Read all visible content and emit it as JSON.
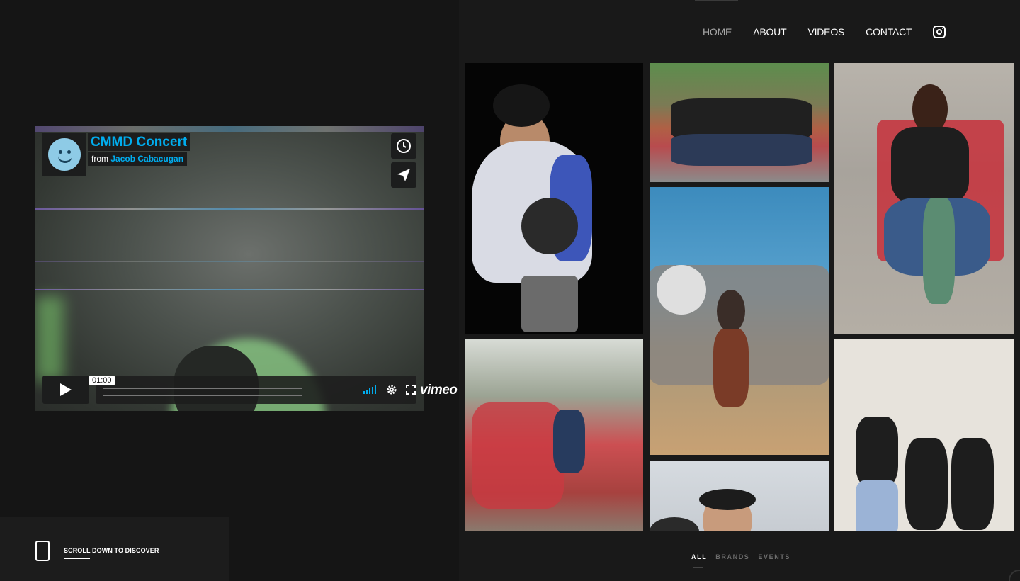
{
  "nav": {
    "items": [
      {
        "label": "HOME",
        "active": true
      },
      {
        "label": "ABOUT",
        "active": false
      },
      {
        "label": "VIDEOS",
        "active": false
      },
      {
        "label": "CONTACT",
        "active": false
      }
    ],
    "instagram_icon": "instagram-icon"
  },
  "video": {
    "title": "CMMD Concert",
    "from_label": "from",
    "author": "Jacob Cabacugan",
    "time": "01:00",
    "brand": "vimeo",
    "accent": "#00adef"
  },
  "scroll": {
    "label": "SCROLL DOWN TO DISCOVER"
  },
  "filters": {
    "items": [
      {
        "label": "ALL",
        "active": true
      },
      {
        "label": "BRANDS",
        "active": false
      },
      {
        "label": "EVENTS",
        "active": false
      }
    ]
  },
  "gallery": {
    "photos": [
      {
        "name": "photo-portrait-varsity-jacket"
      },
      {
        "name": "photo-group-bench"
      },
      {
        "name": "photo-skateboarder-red-bench"
      },
      {
        "name": "photo-junkyard-tv-pile"
      },
      {
        "name": "photo-greenhouse-red-flowers"
      },
      {
        "name": "photo-trio-white-backdrop"
      },
      {
        "name": "photo-portrait-white-backdrop"
      }
    ]
  }
}
